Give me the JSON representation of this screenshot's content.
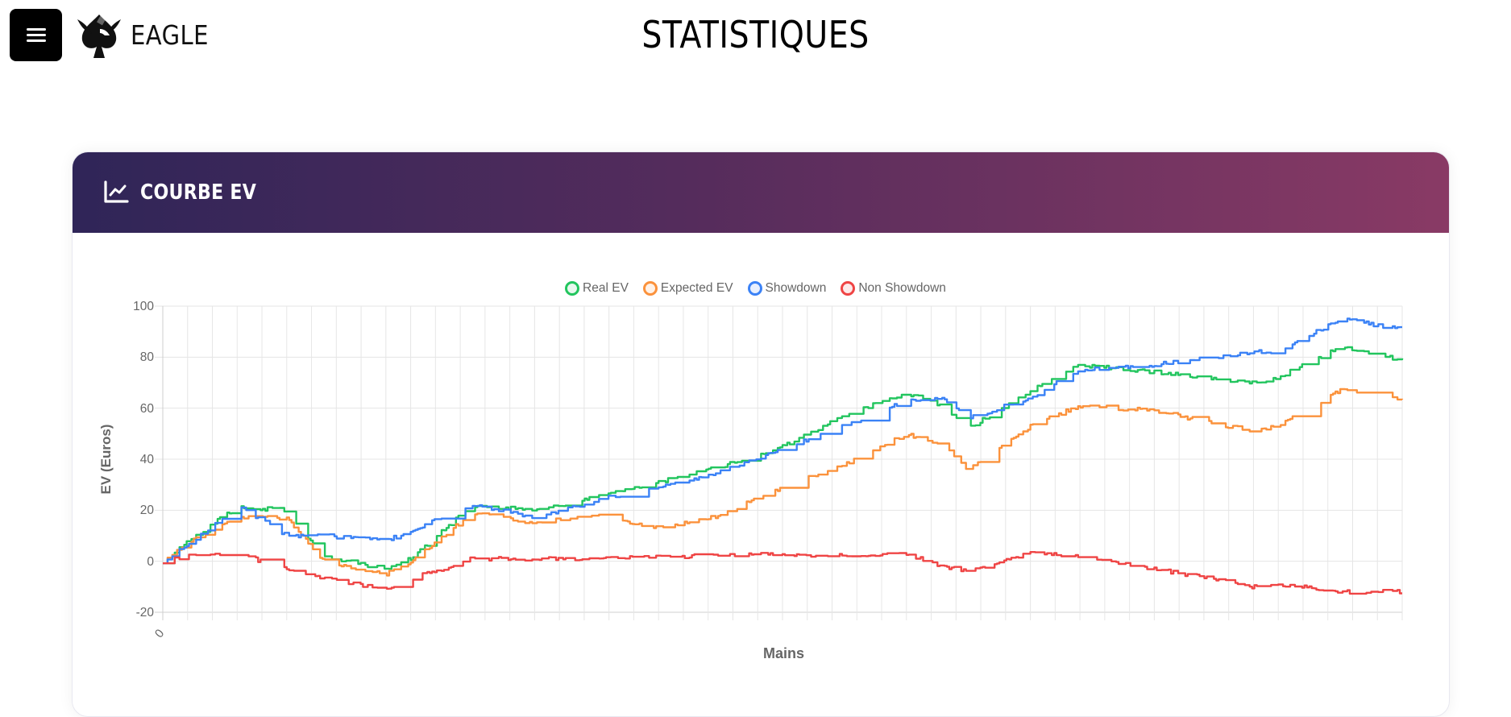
{
  "header": {
    "menu_icon": "hamburger-icon",
    "logo_icon": "eagle-spade-logo-icon",
    "brand": "EAGLE",
    "page_title": "STATISTIQUES"
  },
  "card": {
    "icon": "line-chart-icon",
    "title": "COURBE EV"
  },
  "colors": {
    "header_gradient_start": "#2f2558",
    "header_gradient_end": "#893a65",
    "real_ev": "#22c55e",
    "expected_ev": "#fb923c",
    "showdown": "#3b82f6",
    "non_showdown": "#ef4444"
  },
  "chart_data": {
    "type": "line",
    "title": "",
    "xlabel": "Mains",
    "ylabel": "EV (Euros)",
    "ylim": [
      -20,
      100
    ],
    "yticks": [
      "100",
      "80",
      "60",
      "40",
      "20",
      "0",
      "-20"
    ],
    "xticks_visible": [
      "0"
    ],
    "grid": true,
    "legend_position": "top",
    "x_progress": [
      0,
      0.02,
      0.06,
      0.1,
      0.13,
      0.18,
      0.2,
      0.25,
      0.3,
      0.35,
      0.4,
      0.45,
      0.5,
      0.55,
      0.6,
      0.63,
      0.65,
      0.7,
      0.74,
      0.8,
      0.88,
      0.9,
      0.95,
      1.0
    ],
    "series": [
      {
        "name": "Real EV",
        "color": "#22c55e",
        "values": [
          0,
          8,
          21,
          20,
          2,
          -3,
          1,
          22,
          20,
          25,
          31,
          37,
          45,
          57,
          66,
          61,
          52,
          67,
          77,
          74,
          70,
          72,
          84,
          79
        ]
      },
      {
        "name": "Expected EV",
        "color": "#fb923c",
        "values": [
          0,
          7,
          17,
          17,
          0,
          -5,
          0,
          19,
          15,
          18,
          13,
          18,
          29,
          38,
          50,
          45,
          36,
          53,
          61,
          59,
          51,
          53,
          67,
          63
        ]
      },
      {
        "name": "Showdown",
        "color": "#3b82f6",
        "values": [
          0,
          6,
          22,
          10,
          10,
          8,
          12,
          22,
          17,
          24,
          29,
          35,
          44,
          53,
          63,
          64,
          56,
          64,
          75,
          77,
          82,
          82,
          95,
          91
        ]
      },
      {
        "name": "Non Showdown",
        "color": "#ef4444",
        "values": [
          0,
          2,
          3,
          -3,
          -7,
          -11,
          -7,
          1,
          1,
          1,
          2,
          2,
          3,
          2,
          3,
          -2,
          -4,
          3,
          2,
          -3,
          -10,
          -9,
          -12,
          -12
        ]
      }
    ]
  },
  "legend": [
    {
      "label": "Real EV",
      "color": "#22c55e",
      "fill": "#e8f8ee"
    },
    {
      "label": "Expected EV",
      "color": "#fb923c",
      "fill": "#fff2e8"
    },
    {
      "label": "Showdown",
      "color": "#3b82f6",
      "fill": "#e9f0fe"
    },
    {
      "label": "Non Showdown",
      "color": "#ef4444",
      "fill": "#fdeaea"
    }
  ]
}
